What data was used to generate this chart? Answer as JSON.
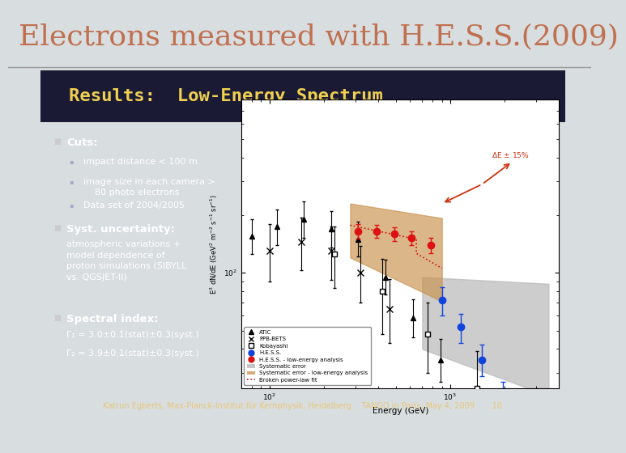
{
  "title": "Electrons measured with H.E.S.S.(2009)",
  "title_color": "#c07050",
  "title_fontsize": 26,
  "bg_slide": "#d8dde0",
  "subtitle": "Results:  Low-Energy Spectrum",
  "subtitle_color": "#f0d050",
  "subtitle_fontsize": 16,
  "bullet1_title": "Cuts:",
  "bullet1_items": [
    "impact distance < 100 m",
    "image size in each camera >\n    80 photo electrons",
    "Data set of 2004/2005"
  ],
  "bullet2_title": "Syst. uncertainty:",
  "bullet2_text": "atmospheric variations +\nmodel dependence of\nproton simulations (SIBYLL\nvs. QGSJET-II)",
  "bullet3_title": "Spectral index:",
  "bullet3_line1": "Γ₁ = 3.0±0.1(stat)±0.3(syst.)",
  "bullet3_line2": "Γ₂ = 3.9±0.1(stat)±0.3(syst.)",
  "footer_text": "Katrun Egberts, Max-Planck-Institut für Kernphysik, Heidelberg    TANGO in Paris, May 4, 2009       10",
  "footer_color": "#e8c87a",
  "footer_bg": "#607890",
  "footer_fontsize": 7.0,
  "dark_bg": "#111122",
  "subtitle_bg": "#1a1a35"
}
